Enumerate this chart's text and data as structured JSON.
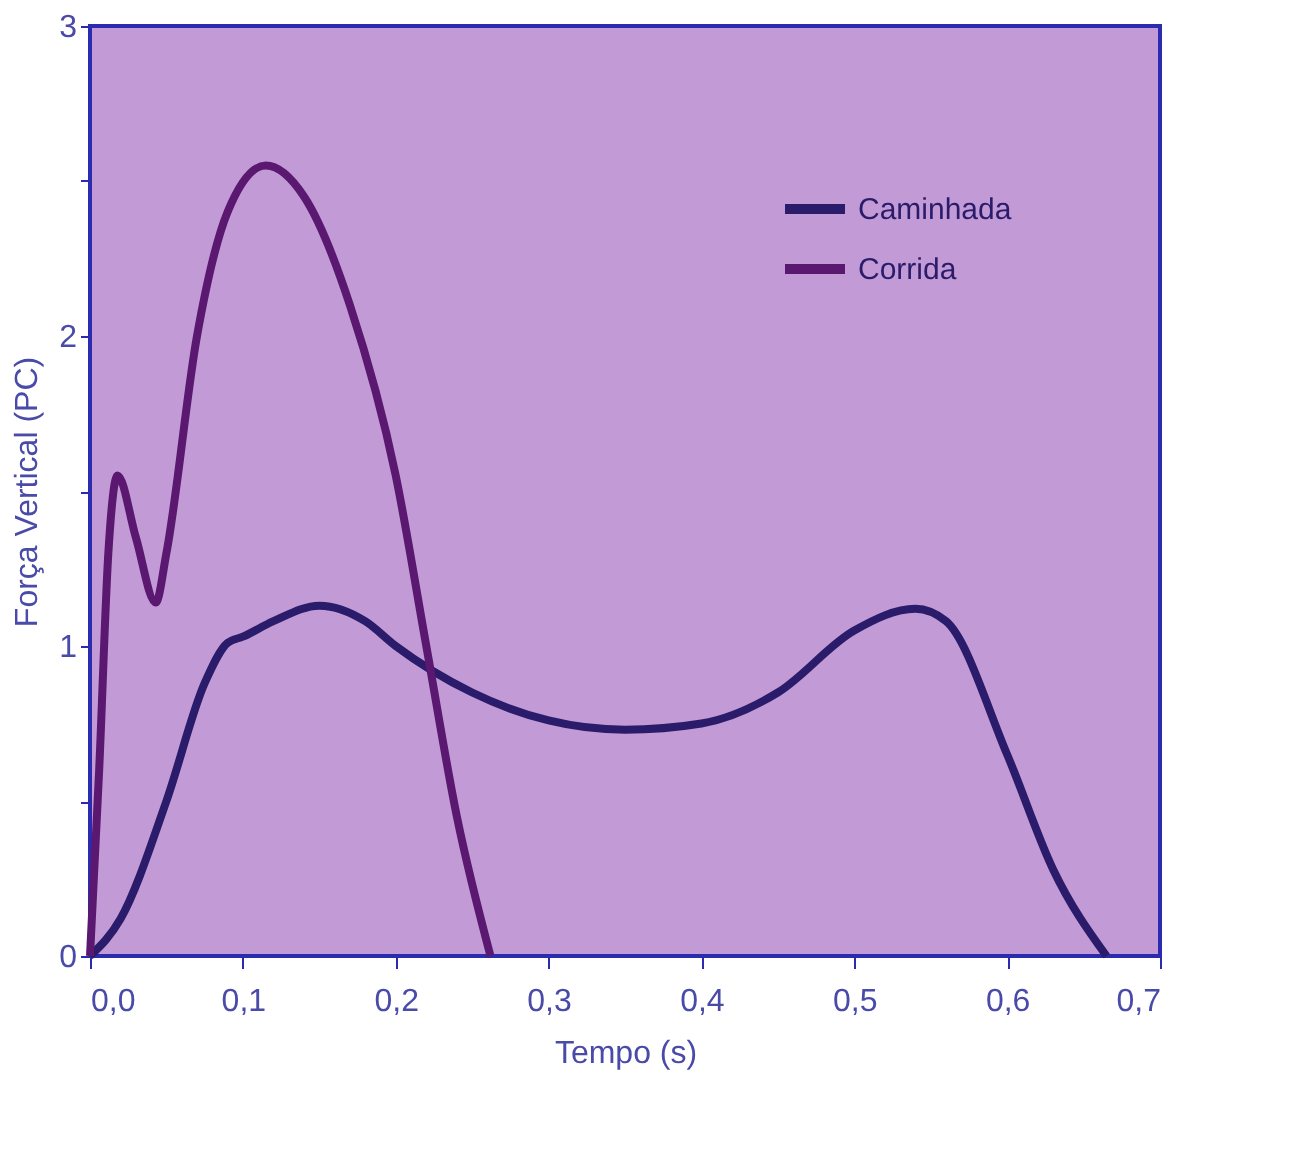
{
  "chart_data": {
    "type": "line",
    "xlabel": "Tempo (s)",
    "ylabel": "Força Vertical (PC)",
    "xlim": [
      0,
      0.7
    ],
    "ylim": [
      0,
      3
    ],
    "xticks": [
      {
        "value": 0,
        "label": "0,0"
      },
      {
        "value": 0.1,
        "label": "0,1"
      },
      {
        "value": 0.2,
        "label": "0,2"
      },
      {
        "value": 0.3,
        "label": "0,3"
      },
      {
        "value": 0.4,
        "label": "0,4"
      },
      {
        "value": 0.5,
        "label": "0,5"
      },
      {
        "value": 0.6,
        "label": "0,6"
      },
      {
        "value": 0.7,
        "label": "0,7"
      }
    ],
    "yticks": [
      0,
      {
        "value": 0.5,
        "label": null
      },
      1,
      {
        "value": 1.5,
        "label": null
      },
      2,
      {
        "value": 2.5,
        "label": null
      },
      3
    ],
    "legend": "top right",
    "grid": false,
    "line_style": "solid",
    "marker": "none",
    "series": [
      {
        "name": "Caminhada",
        "color": "#2b1c6b",
        "x": [
          0,
          0.02,
          0.05,
          0.075,
          0.09,
          0.1,
          0.12,
          0.15,
          0.18,
          0.2,
          0.25,
          0.3,
          0.35,
          0.4,
          0.45,
          0.5,
          0.54,
          0.56,
          0.6,
          0.63,
          0.665
        ],
        "values": [
          0,
          0.12,
          0.5,
          0.88,
          1.01,
          1.03,
          1.08,
          1.13,
          1.08,
          1.0,
          0.85,
          0.76,
          0.73,
          0.75,
          0.85,
          1.05,
          1.12,
          1.08,
          0.65,
          0.28,
          0
        ]
      },
      {
        "name": "Corrida",
        "color": "#5a1870",
        "x": [
          0,
          0.006,
          0.012,
          0.018,
          0.03,
          0.043,
          0.05,
          0.07,
          0.09,
          0.115,
          0.14,
          0.17,
          0.2,
          0.22,
          0.24,
          0.262
        ],
        "values": [
          0,
          0.6,
          1.3,
          1.55,
          1.35,
          1.14,
          1.3,
          2.0,
          2.4,
          2.55,
          2.45,
          2.1,
          1.55,
          1.0,
          0.45,
          0
        ]
      }
    ]
  }
}
